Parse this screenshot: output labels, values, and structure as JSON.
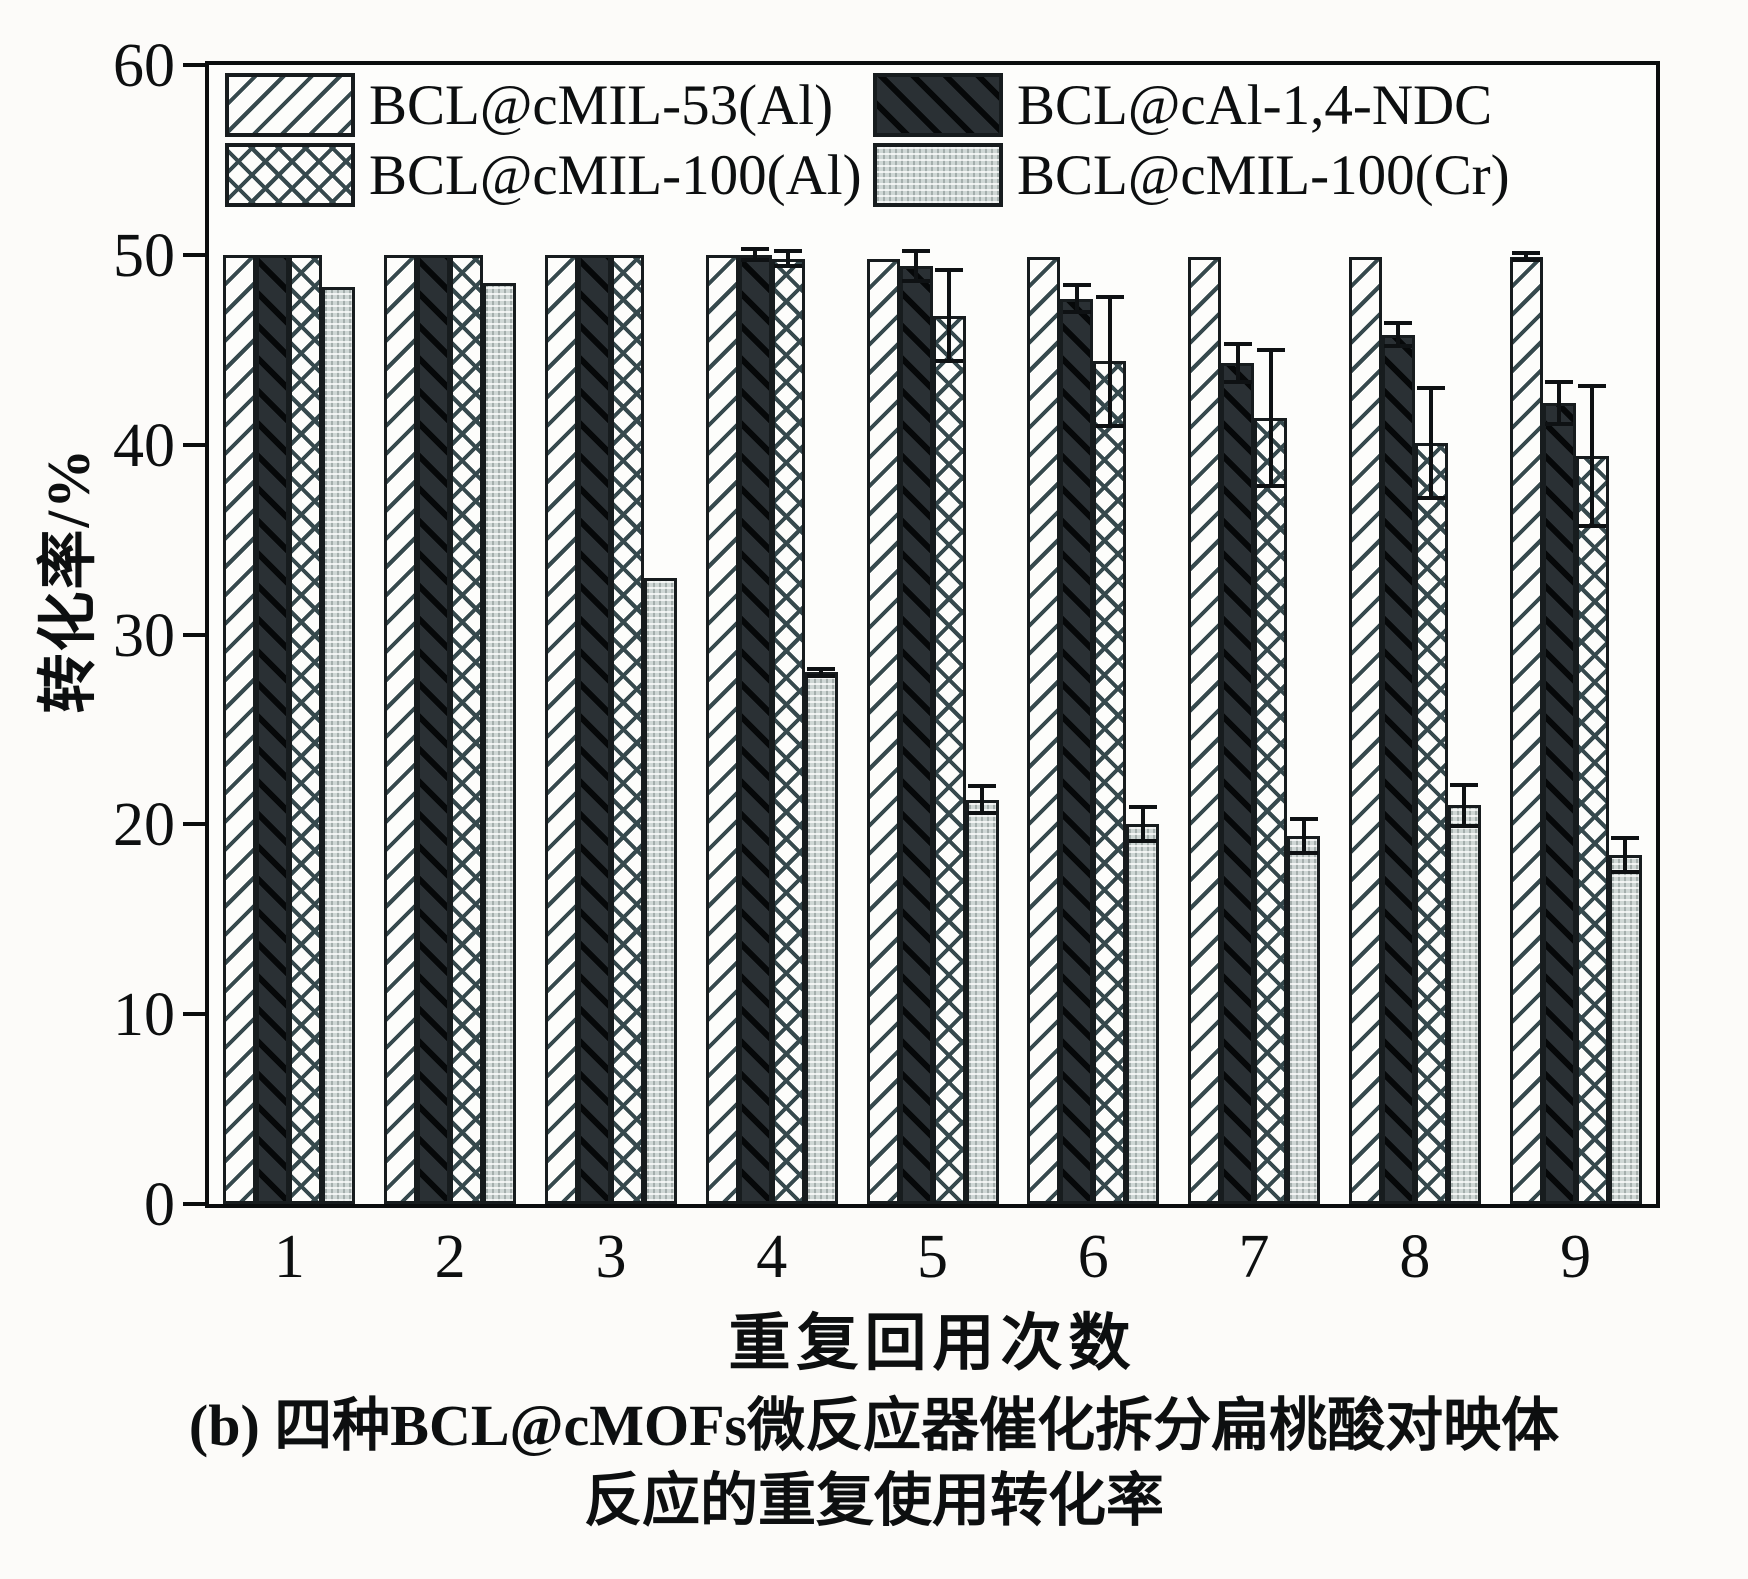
{
  "chart_data": {
    "type": "bar",
    "caption_line1": "(b) 四种BCL@cMOFs微反应器催化拆分扁桃酸对映体",
    "caption_line2": "反应的重复使用转化率",
    "xlabel": "重复回用次数",
    "ylabel": "转化率/%",
    "ylim": [
      0,
      60
    ],
    "yticks": [
      0,
      10,
      20,
      30,
      40,
      50,
      60
    ],
    "categories": [
      "1",
      "2",
      "3",
      "4",
      "5",
      "6",
      "7",
      "8",
      "9"
    ],
    "grid": false,
    "legend_position": "top-left inside plot, 2 columns x 2 rows",
    "series": [
      {
        "name": "BCL@cMIL-53(Al)",
        "pattern": "diagonal-hatch",
        "values": [
          50.0,
          50.0,
          50.0,
          50.0,
          49.8,
          49.9,
          49.9,
          49.9,
          49.9
        ],
        "errors": [
          0,
          0,
          0,
          0,
          0,
          0,
          0,
          0,
          0.3
        ]
      },
      {
        "name": "BCL@cAl-1,4-NDC",
        "pattern": "dark-diagonal",
        "values": [
          50.0,
          50.0,
          50.0,
          50.0,
          49.4,
          47.7,
          44.3,
          45.8,
          42.2
        ],
        "errors": [
          0,
          0,
          0,
          0.4,
          0.9,
          0.8,
          1.1,
          0.7,
          1.2
        ]
      },
      {
        "name": "BCL@cMIL-100(Al)",
        "pattern": "crosshatch",
        "values": [
          50.0,
          50.0,
          50.0,
          49.8,
          46.8,
          44.4,
          41.4,
          40.1,
          39.4
        ],
        "errors": [
          0,
          0,
          0,
          0.5,
          2.5,
          3.5,
          3.7,
          3.0,
          3.8
        ]
      },
      {
        "name": "BCL@cMIL-100(Cr)",
        "pattern": "gray-dotted",
        "values": [
          48.3,
          48.5,
          33.0,
          28.0,
          21.3,
          20.0,
          19.4,
          21.0,
          18.4
        ],
        "errors": [
          0,
          0,
          0,
          0.3,
          0.8,
          1.0,
          1.0,
          1.2,
          1.0
        ]
      }
    ],
    "colors": {
      "ink": "#0d0f10",
      "hatch_line": "#36494d",
      "dark_fill": "#2a3034",
      "dark_stripe": "#060809",
      "gray_fill": "#cfd7d5",
      "background": "#fcfbf9"
    }
  }
}
